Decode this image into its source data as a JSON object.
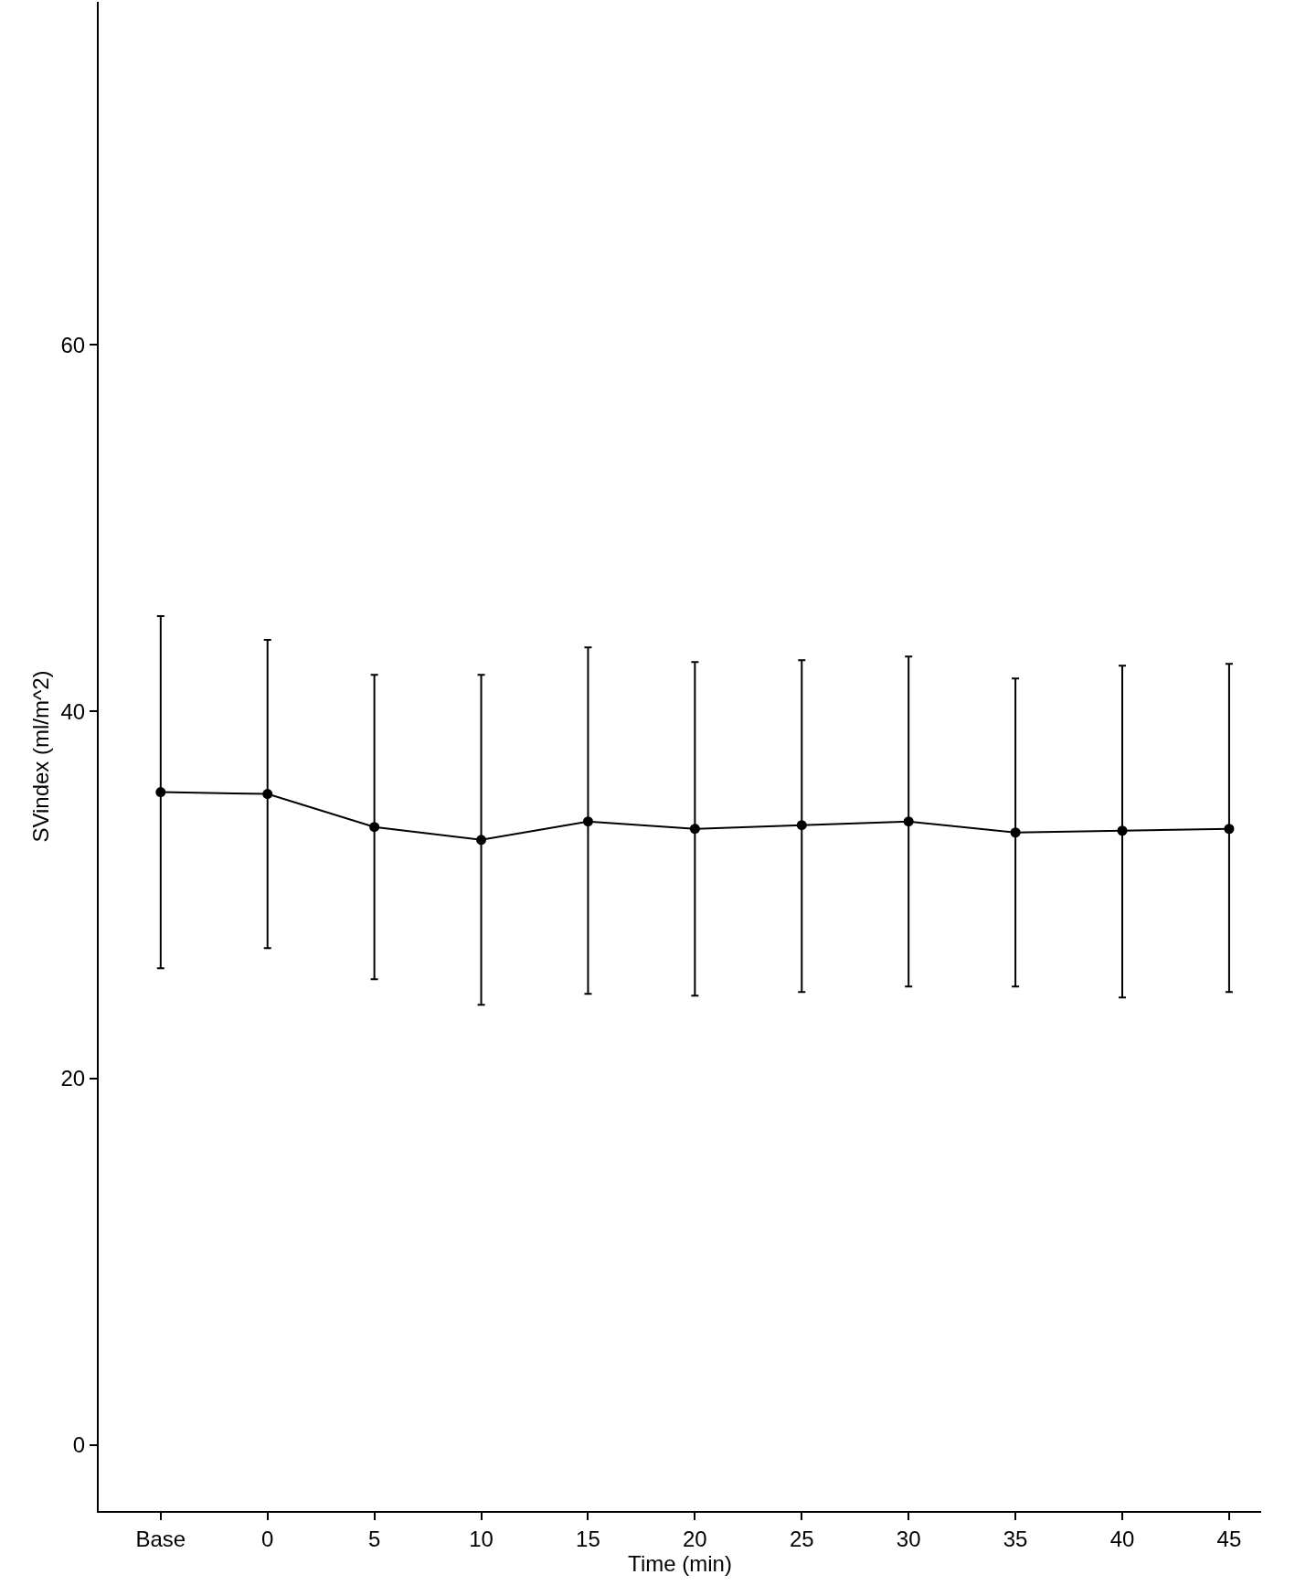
{
  "chart_data": {
    "type": "line",
    "xlabel": "Time (min)",
    "ylabel": "SVindex (ml/m^2)",
    "categories": [
      "Base",
      "0",
      "5",
      "10",
      "15",
      "20",
      "25",
      "30",
      "35",
      "40",
      "45"
    ],
    "series": [
      {
        "color": "#000000",
        "values": [
          35.6,
          35.5,
          33.7,
          33.0,
          34.0,
          33.6,
          33.8,
          34.0,
          33.4,
          33.5,
          33.6
        ],
        "errors": [
          [
            26.0,
            45.2
          ],
          [
            27.1,
            43.9
          ],
          [
            25.4,
            42.0
          ],
          [
            24.0,
            42.0
          ],
          [
            24.6,
            43.5
          ],
          [
            24.5,
            42.7
          ],
          [
            24.7,
            42.8
          ],
          [
            25.0,
            43.0
          ],
          [
            25.0,
            41.8
          ],
          [
            24.4,
            42.5
          ],
          [
            24.7,
            42.6
          ]
        ]
      }
    ],
    "ylim": [
      -3.6,
      78.7
    ],
    "yticks": [
      0,
      20,
      40,
      60
    ],
    "marker": "circle",
    "line_style": "solid"
  }
}
